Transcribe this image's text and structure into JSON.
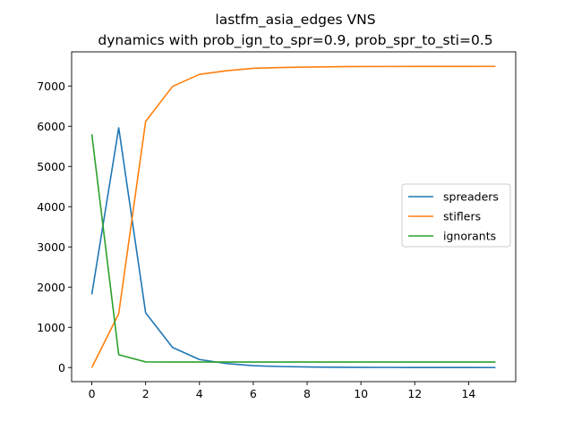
{
  "chart_data": {
    "type": "line",
    "title": "lastfm_asia_edges VNS",
    "subtitle": "dynamics with prob_ign_to_spr=0.9, prob_spr_to_sti=0.5",
    "xlabel": "",
    "ylabel": "",
    "xlim": [
      -0.75,
      15.75
    ],
    "ylim": [
      -350,
      7850
    ],
    "xticks": [
      0,
      2,
      4,
      6,
      8,
      10,
      12,
      14
    ],
    "yticks": [
      0,
      1000,
      2000,
      3000,
      4000,
      5000,
      6000,
      7000
    ],
    "grid": false,
    "legend_position": "center-right",
    "x": [
      0,
      1,
      2,
      3,
      4,
      5,
      6,
      7,
      8,
      9,
      10,
      11,
      12,
      13,
      14,
      15
    ],
    "series": [
      {
        "name": "spreaders",
        "color": "#1f77b4",
        "values": [
          1820,
          5960,
          1360,
          500,
          200,
          100,
          45,
          25,
          15,
          8,
          5,
          3,
          2,
          1,
          1,
          0
        ]
      },
      {
        "name": "stiflers",
        "color": "#ff7f0e",
        "values": [
          0,
          1340,
          6120,
          6990,
          7290,
          7380,
          7440,
          7460,
          7470,
          7480,
          7484,
          7486,
          7487,
          7488,
          7488,
          7489
        ]
      },
      {
        "name": "ignorants",
        "color": "#2ca02c",
        "values": [
          5800,
          320,
          140,
          138,
          138,
          138,
          138,
          138,
          138,
          138,
          138,
          138,
          138,
          138,
          138,
          138
        ]
      }
    ]
  }
}
